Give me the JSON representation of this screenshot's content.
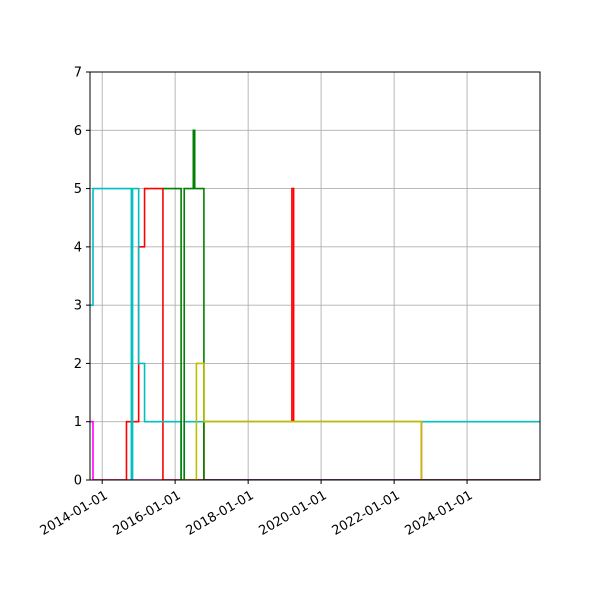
{
  "chart_data": {
    "type": "line",
    "title": "",
    "xlabel": "",
    "ylabel": "",
    "x_axis_type": "date",
    "xlim": [
      "2013-09-01",
      "2025-12-31"
    ],
    "ylim": [
      0,
      7
    ],
    "grid": true,
    "legend": "none",
    "step": "post",
    "x_tick_labels": [
      "2014-01-01",
      "2016-01-01",
      "2018-01-01",
      "2020-01-01",
      "2022-01-01",
      "2024-01-01"
    ],
    "y_tick_labels": [
      "0",
      "1",
      "2",
      "3",
      "4",
      "5",
      "6",
      "7"
    ],
    "series": [
      {
        "color": "#ff00ff",
        "points": [
          [
            "2013-09-01",
            1
          ],
          [
            "2013-10-01",
            0
          ],
          [
            "2025-12-31",
            0
          ]
        ]
      },
      {
        "color": "#ff0000",
        "points": [
          [
            "2013-10-01",
            0
          ],
          [
            "2014-09-01",
            1
          ],
          [
            "2015-01-01",
            4
          ],
          [
            "2015-03-01",
            5
          ],
          [
            "2015-09-01",
            0
          ],
          [
            "2016-10-15",
            1
          ],
          [
            "2019-03-15",
            5
          ],
          [
            "2019-04-01",
            1
          ],
          [
            "2022-10-01",
            0
          ],
          [
            "2025-12-31",
            0
          ]
        ]
      },
      {
        "color": "#00bfbf",
        "points": [
          [
            "2013-09-01",
            3
          ],
          [
            "2013-10-01",
            5
          ],
          [
            "2014-10-20",
            0
          ],
          [
            "2014-11-01",
            5
          ],
          [
            "2015-01-01",
            2
          ],
          [
            "2015-03-01",
            1
          ],
          [
            "2016-03-01",
            0
          ],
          [
            "2016-04-01",
            1
          ],
          [
            "2022-10-01",
            1
          ],
          [
            "2025-12-31",
            1
          ]
        ]
      },
      {
        "color": "#008000",
        "points": [
          [
            "2015-09-01",
            5
          ],
          [
            "2016-03-01",
            0
          ],
          [
            "2016-04-01",
            5
          ],
          [
            "2016-07-01",
            6
          ],
          [
            "2016-07-15",
            5
          ],
          [
            "2016-10-15",
            0
          ],
          [
            "2025-12-31",
            0
          ]
        ]
      },
      {
        "color": "#bfbf00",
        "points": [
          [
            "2016-03-01",
            0
          ],
          [
            "2016-08-01",
            2
          ],
          [
            "2016-10-15",
            1
          ],
          [
            "2022-10-01",
            0
          ],
          [
            "2025-12-31",
            0
          ]
        ]
      },
      {
        "color": "#800080",
        "points": [
          [
            "2016-10-15",
            0
          ],
          [
            "2025-12-31",
            0
          ]
        ]
      }
    ]
  }
}
